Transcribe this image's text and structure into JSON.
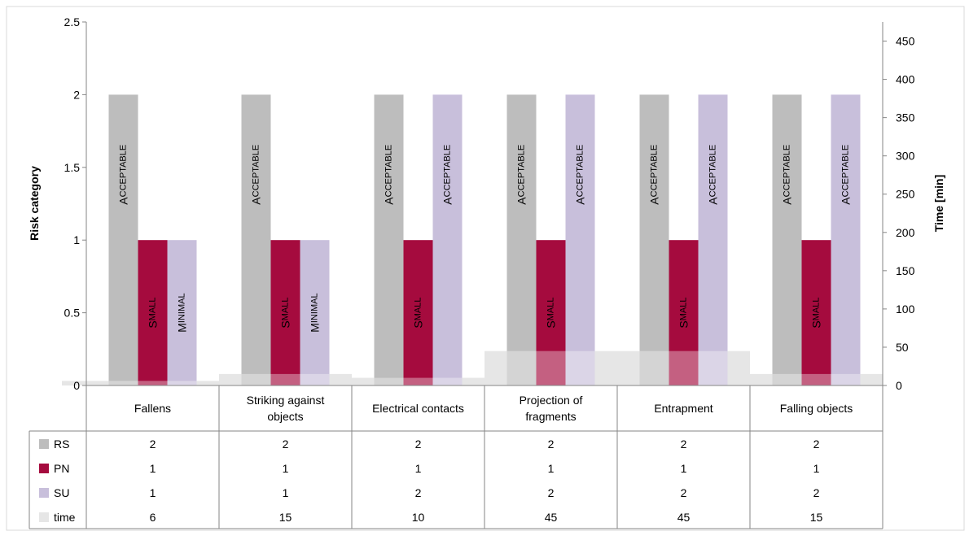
{
  "chart_data": {
    "type": "bar",
    "categories": [
      "Fallens",
      "Striking against objects",
      "Electrical contacts",
      "Projection of fragments",
      "Entrapment",
      "Falling objects"
    ],
    "category_lines": [
      [
        "Fallens"
      ],
      [
        "Striking against",
        "objects"
      ],
      [
        "Electrical contacts"
      ],
      [
        "Projection of",
        "fragments"
      ],
      [
        "Entrapment"
      ],
      [
        "Falling objects"
      ]
    ],
    "y_left": {
      "label": "Risk category",
      "min": 0,
      "max": 2.5,
      "ticks": [
        "0",
        "0.5",
        "1",
        "1.5",
        "2",
        "2.5"
      ]
    },
    "y_right": {
      "label": "Time [min]",
      "min": 0,
      "max": 475,
      "ticks": [
        "0",
        "50",
        "100",
        "150",
        "200",
        "250",
        "300",
        "350",
        "400",
        "450"
      ]
    },
    "series": [
      {
        "name": "RS",
        "axis": "left",
        "color": "#bdbdbd",
        "values": [
          2,
          2,
          2,
          2,
          2,
          2
        ],
        "labels": [
          "Acceptable",
          "Acceptable",
          "Acceptable",
          "Acceptable",
          "Acceptable",
          "Acceptable"
        ]
      },
      {
        "name": "PN",
        "axis": "left",
        "color": "#a50b3e",
        "values": [
          1,
          1,
          1,
          1,
          1,
          1
        ],
        "labels": [
          "Small",
          "Small",
          "Small",
          "Small",
          "Small",
          "Small"
        ]
      },
      {
        "name": "SU",
        "axis": "left",
        "color": "#c8bfdb",
        "values": [
          1,
          1,
          2,
          2,
          2,
          2
        ],
        "labels": [
          "Minimal",
          "Minimal",
          "Acceptable",
          "Acceptable",
          "Acceptable",
          "Acceptable"
        ]
      },
      {
        "name": "time",
        "axis": "right",
        "type": "area",
        "color": "#e6e6e6",
        "values": [
          6,
          15,
          10,
          45,
          45,
          15
        ]
      }
    ],
    "table_rows": [
      {
        "name": "RS",
        "values": [
          "2",
          "2",
          "2",
          "2",
          "2",
          "2"
        ]
      },
      {
        "name": "PN",
        "values": [
          "1",
          "1",
          "1",
          "1",
          "1",
          "1"
        ]
      },
      {
        "name": "SU",
        "values": [
          "1",
          "1",
          "2",
          "2",
          "2",
          "2"
        ]
      },
      {
        "name": "time",
        "values": [
          "6",
          "15",
          "10",
          "45",
          "45",
          "15"
        ]
      }
    ],
    "grid": false,
    "legend": "data-table"
  }
}
